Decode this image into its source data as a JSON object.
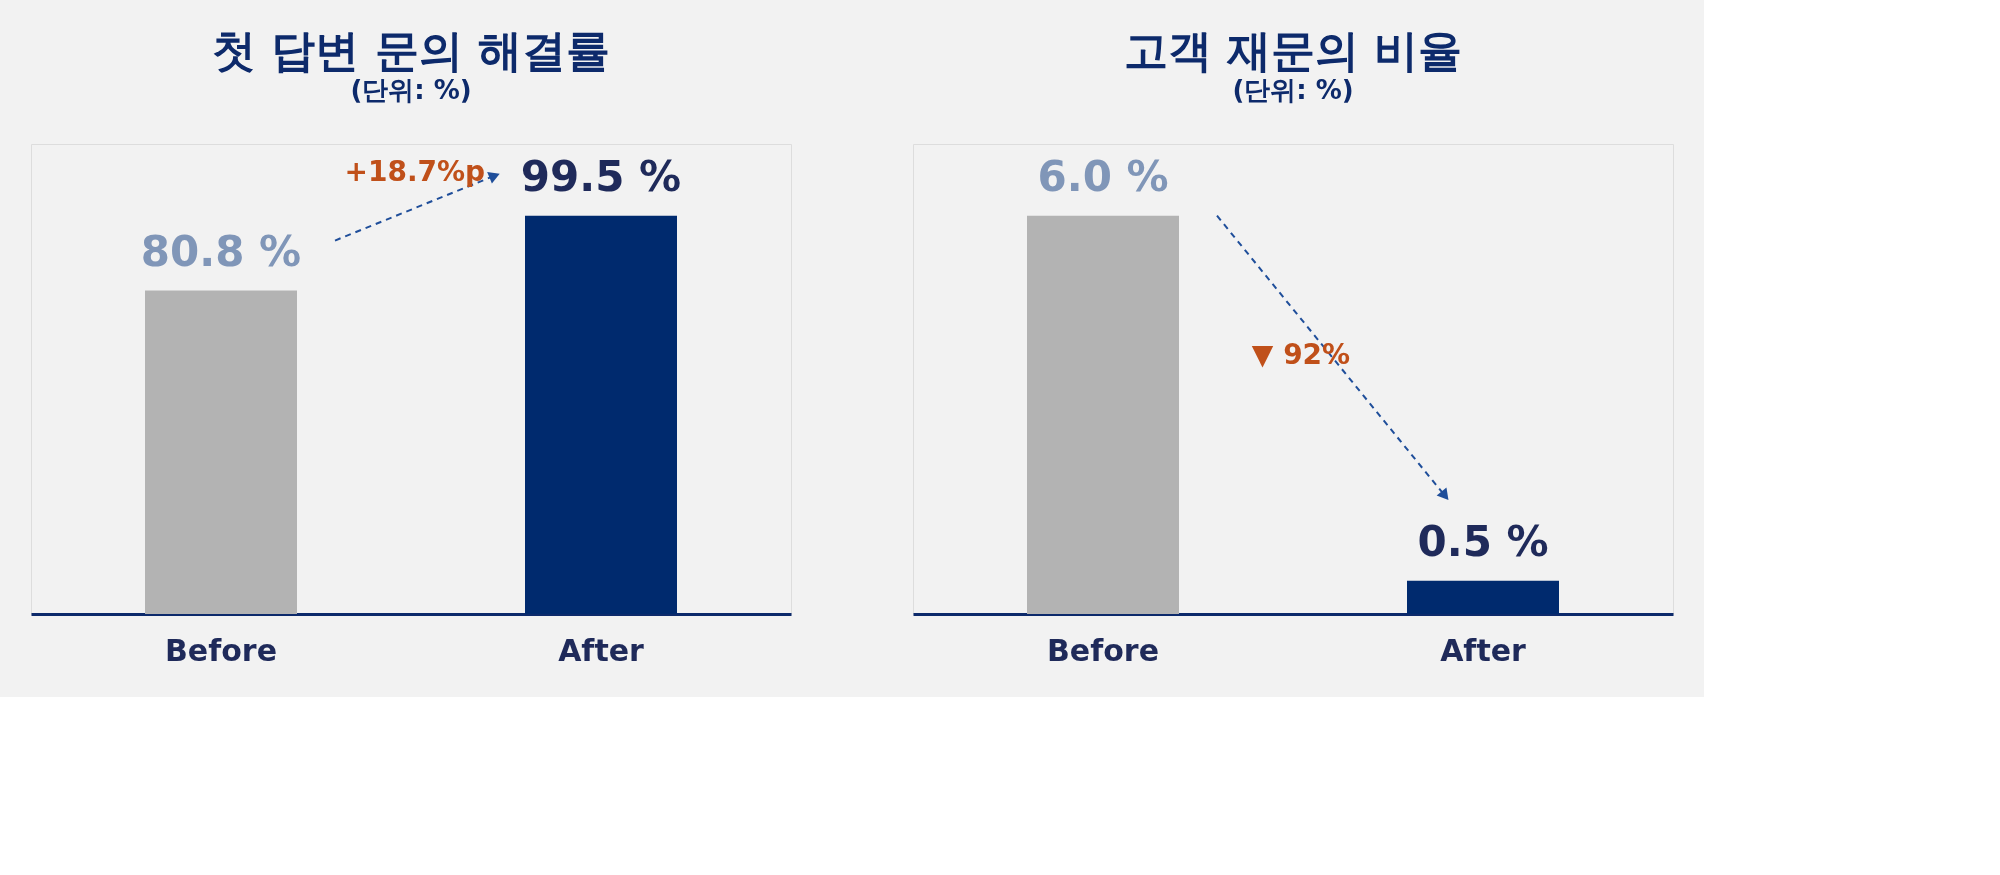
{
  "chart_data": [
    {
      "type": "bar",
      "title": "첫 답변 문의 해결률",
      "subtitle": "(단위: %)",
      "categories": [
        "Before",
        "After"
      ],
      "values": [
        80.8,
        99.5
      ],
      "colors": [
        "#b3b3b3",
        "#002a6e"
      ],
      "data_labels": true,
      "value_labels": [
        "80.8 %",
        "99.5 %"
      ],
      "annotations": [
        "+18.7%p"
      ],
      "grid": false,
      "legend": false
    },
    {
      "type": "bar",
      "title": "고객 재문의 비율",
      "subtitle": "(단위: %)",
      "categories": [
        "Before",
        "After"
      ],
      "values": [
        6.0,
        0.5
      ],
      "colors": [
        "#b3b3b3",
        "#002a6e"
      ],
      "data_labels": true,
      "value_labels": [
        "6.0 %",
        "0.5 %"
      ],
      "annotations": [
        "▼ 92%"
      ],
      "grid": false,
      "legend": false
    }
  ]
}
